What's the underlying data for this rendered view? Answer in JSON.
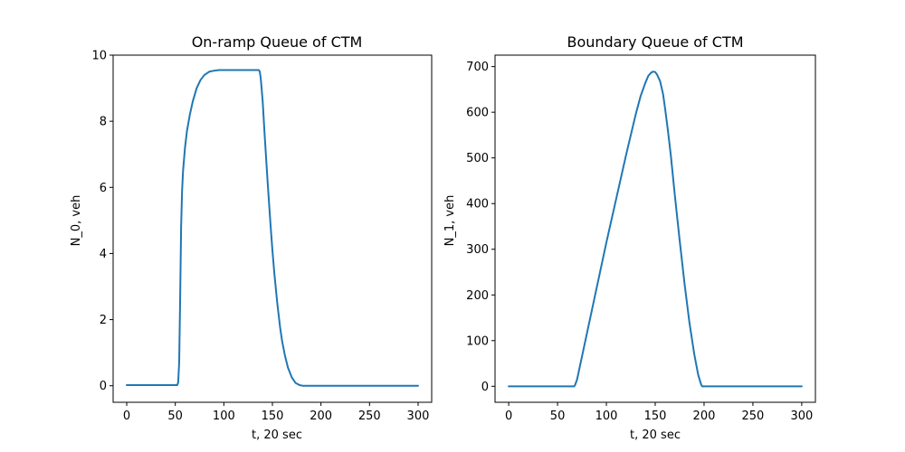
{
  "chart_data": [
    {
      "type": "line",
      "title": "On-ramp Queue of CTM",
      "xlabel": "t, 20 sec",
      "ylabel": "N_0, veh",
      "xlim": [
        -14,
        314
      ],
      "ylim": [
        -0.5,
        10
      ],
      "x_ticks": [
        0,
        50,
        100,
        150,
        200,
        250,
        300
      ],
      "y_ticks": [
        0,
        2,
        4,
        6,
        8,
        10
      ],
      "grid": false,
      "series": [
        {
          "color": "#1f77b4",
          "x": [
            0,
            52,
            53,
            54,
            55,
            56,
            57,
            58,
            60,
            62,
            65,
            68,
            72,
            76,
            80,
            85,
            90,
            95,
            100,
            110,
            120,
            130,
            136,
            137,
            138,
            140,
            142,
            145,
            148,
            150,
            152,
            155,
            158,
            160,
            163,
            166,
            170,
            174,
            178,
            181,
            183,
            300
          ],
          "y": [
            0.02,
            0.02,
            0.1,
            0.7,
            2.6,
            4.8,
            5.9,
            6.5,
            7.2,
            7.7,
            8.2,
            8.6,
            9.0,
            9.25,
            9.4,
            9.5,
            9.53,
            9.55,
            9.55,
            9.55,
            9.55,
            9.55,
            9.55,
            9.5,
            9.3,
            8.6,
            7.6,
            6.2,
            4.9,
            4.1,
            3.4,
            2.5,
            1.75,
            1.35,
            0.9,
            0.55,
            0.25,
            0.08,
            0.02,
            0.0,
            0.0,
            0.0
          ]
        }
      ]
    },
    {
      "type": "line",
      "title": "Boundary Queue of CTM",
      "xlabel": "t, 20 sec",
      "ylabel": "N_1, veh",
      "xlim": [
        -14,
        314
      ],
      "ylim": [
        -35,
        725
      ],
      "x_ticks": [
        0,
        50,
        100,
        150,
        200,
        250,
        300
      ],
      "y_ticks": [
        0,
        100,
        200,
        300,
        400,
        500,
        600,
        700
      ],
      "grid": false,
      "series": [
        {
          "color": "#1f77b4",
          "x": [
            0,
            67,
            68,
            70,
            72,
            75,
            80,
            90,
            100,
            110,
            120,
            130,
            135,
            140,
            143,
            146,
            148,
            150,
            152,
            155,
            158,
            160,
            163,
            166,
            170,
            175,
            180,
            185,
            190,
            194,
            197,
            198,
            200,
            300
          ],
          "y": [
            0,
            0,
            3,
            15,
            35,
            65,
            115,
            215,
            315,
            410,
            505,
            595,
            635,
            665,
            680,
            687,
            689,
            688,
            682,
            668,
            640,
            610,
            560,
            505,
            420,
            320,
            225,
            140,
            70,
            25,
            4,
            0,
            0,
            0
          ]
        }
      ]
    }
  ]
}
